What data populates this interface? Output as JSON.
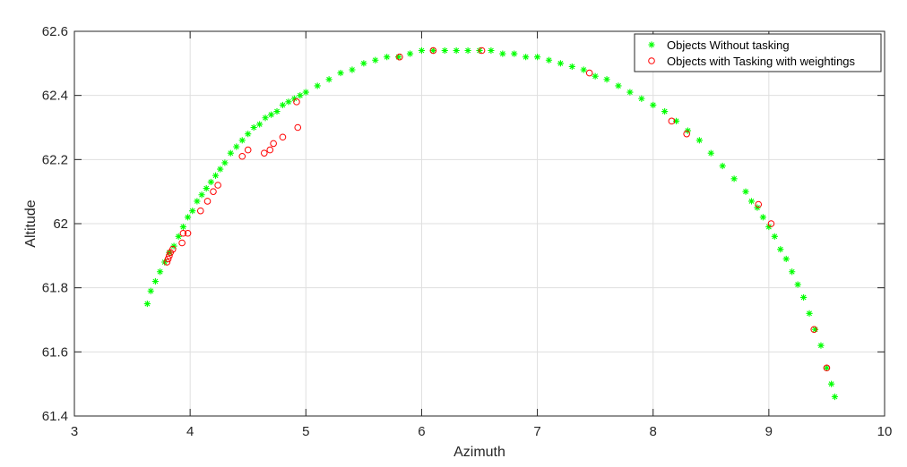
{
  "chart_data": {
    "type": "scatter",
    "xlabel": "Azimuth",
    "ylabel": "Altitude",
    "xlim": [
      3,
      10
    ],
    "ylim": [
      61.4,
      62.6
    ],
    "xticks": [
      3,
      4,
      5,
      6,
      7,
      8,
      9,
      10
    ],
    "yticks": [
      61.4,
      61.6,
      61.8,
      62,
      62.2,
      62.4,
      62.6
    ],
    "xtick_labels": [
      "3",
      "4",
      "5",
      "6",
      "7",
      "8",
      "9",
      "10"
    ],
    "ytick_labels": [
      "61.4",
      "61.6",
      "61.8",
      "62",
      "62.2",
      "62.4",
      "62.6"
    ],
    "grid": true,
    "legend_position": "top-right",
    "series": [
      {
        "name": "Objects Without tasking",
        "marker": "asterisk",
        "color": "#00ff00",
        "x": [
          3.63,
          3.66,
          3.7,
          3.74,
          3.78,
          3.82,
          3.86,
          3.9,
          3.94,
          3.98,
          4.02,
          4.06,
          4.1,
          4.14,
          4.18,
          4.22,
          4.26,
          4.3,
          4.35,
          4.4,
          4.45,
          4.5,
          4.55,
          4.6,
          4.65,
          4.7,
          4.75,
          4.8,
          4.85,
          4.9,
          4.95,
          5.0,
          5.1,
          5.2,
          5.3,
          5.4,
          5.5,
          5.6,
          5.7,
          5.8,
          5.9,
          6.0,
          6.1,
          6.2,
          6.3,
          6.4,
          6.5,
          6.6,
          6.7,
          6.8,
          6.9,
          7.0,
          7.1,
          7.2,
          7.3,
          7.4,
          7.5,
          7.6,
          7.7,
          7.8,
          7.9,
          8.0,
          8.1,
          8.2,
          8.3,
          8.4,
          8.5,
          8.6,
          8.7,
          8.8,
          8.85,
          8.9,
          8.95,
          9.0,
          9.05,
          9.1,
          9.15,
          9.2,
          9.25,
          9.3,
          9.35,
          9.4,
          9.45,
          9.5,
          9.54,
          9.57
        ],
        "y": [
          61.75,
          61.79,
          61.82,
          61.85,
          61.88,
          61.91,
          61.93,
          61.96,
          61.99,
          62.02,
          62.04,
          62.07,
          62.09,
          62.11,
          62.13,
          62.15,
          62.17,
          62.19,
          62.22,
          62.24,
          62.26,
          62.28,
          62.3,
          62.31,
          62.33,
          62.34,
          62.35,
          62.37,
          62.38,
          62.39,
          62.4,
          62.41,
          62.43,
          62.45,
          62.47,
          62.48,
          62.5,
          62.51,
          62.52,
          62.52,
          62.53,
          62.54,
          62.54,
          62.54,
          62.54,
          62.54,
          62.54,
          62.54,
          62.53,
          62.53,
          62.52,
          62.52,
          62.51,
          62.5,
          62.49,
          62.48,
          62.46,
          62.45,
          62.43,
          62.41,
          62.39,
          62.37,
          62.35,
          62.32,
          62.29,
          62.26,
          62.22,
          62.18,
          62.14,
          62.1,
          62.07,
          62.05,
          62.02,
          61.99,
          61.96,
          61.92,
          61.89,
          61.85,
          61.81,
          61.77,
          61.72,
          61.67,
          61.62,
          61.55,
          61.5,
          61.46
        ]
      },
      {
        "name": "Objects with Tasking with weightings",
        "marker": "circle",
        "color": "#ff0000",
        "x": [
          3.8,
          3.81,
          3.82,
          3.83,
          3.85,
          3.93,
          3.94,
          3.98,
          4.09,
          4.15,
          4.2,
          4.24,
          4.45,
          4.5,
          4.64,
          4.69,
          4.72,
          4.8,
          4.92,
          4.93,
          5.81,
          6.1,
          6.52,
          7.45,
          8.16,
          8.29,
          8.91,
          9.02,
          9.39,
          9.5
        ],
        "y": [
          61.88,
          61.89,
          61.9,
          61.91,
          61.92,
          61.94,
          61.97,
          61.97,
          62.04,
          62.07,
          62.1,
          62.12,
          62.21,
          62.23,
          62.22,
          62.23,
          62.25,
          62.27,
          62.38,
          62.3,
          62.52,
          62.54,
          62.54,
          62.47,
          62.32,
          62.28,
          62.06,
          62.0,
          61.67,
          61.55
        ]
      }
    ]
  }
}
